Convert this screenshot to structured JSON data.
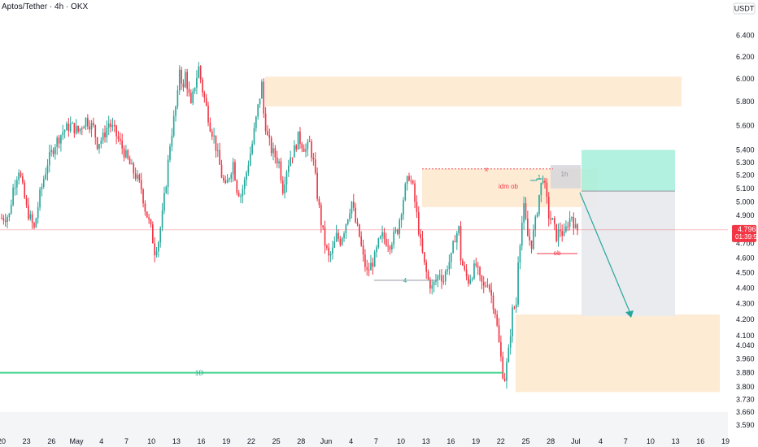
{
  "header": {
    "title": "Aptos/Tether · 4h · OKX"
  },
  "price_axis": {
    "currency": "USDT"
  },
  "current_price": {
    "value": "4.796",
    "countdown": "01:39:59"
  },
  "colors": {
    "up": "#26a69a",
    "down": "#f23645",
    "zone": "#fde9cf",
    "target": "#aaf0dc",
    "stop_area": "#e9eaee",
    "supply": "#d6d6dc",
    "line_green": "#42d48c",
    "line_red": "#f23645",
    "arrow": "#26a69a",
    "label_bg": "#f23645"
  },
  "chart_data": {
    "type": "candlestick",
    "title": "Aptos/Tether · 4h · OKX",
    "ylabel": "USDT",
    "y_scale": "log",
    "ylim": [
      3.56,
      6.6
    ],
    "y_ticks": [
      "6.400",
      "6.200",
      "6.000",
      "5.800",
      "5.600",
      "5.400",
      "5.300",
      "5.200",
      "5.100",
      "5.000",
      "4.900",
      "4.800",
      "4.700",
      "4.600",
      "4.500",
      "4.400",
      "4.300",
      "4.200",
      "4.100",
      "4.040",
      "3.960",
      "3.880",
      "3.800",
      "3.730",
      "3.660",
      "3.590"
    ],
    "x_ticks": [
      "20",
      "23",
      "26",
      "May",
      "4",
      "7",
      "10",
      "13",
      "16",
      "19",
      "22",
      "25",
      "28",
      "Jun",
      "4",
      "7",
      "10",
      "13",
      "16",
      "19",
      "22",
      "25",
      "28",
      "Jul",
      "4",
      "7",
      "10",
      "13",
      "16",
      "19"
    ],
    "x_range": [
      "Apr 20",
      "Jul 19"
    ],
    "path_points": [
      [
        0,
        4.88
      ],
      [
        4,
        4.9
      ],
      [
        6,
        5.1
      ],
      [
        9,
        5.25
      ],
      [
        13,
        4.95
      ],
      [
        17,
        4.8
      ],
      [
        20,
        5.05
      ],
      [
        24,
        5.3
      ],
      [
        28,
        5.45
      ],
      [
        32,
        5.55
      ],
      [
        36,
        5.6
      ],
      [
        40,
        5.55
      ],
      [
        44,
        5.65
      ],
      [
        48,
        5.58
      ],
      [
        50,
        5.45
      ],
      [
        53,
        5.5
      ],
      [
        56,
        5.62
      ],
      [
        59,
        5.55
      ],
      [
        62,
        5.45
      ],
      [
        65,
        5.35
      ],
      [
        68,
        5.25
      ],
      [
        70,
        5.2
      ],
      [
        73,
        5.1
      ],
      [
        75,
        4.95
      ],
      [
        78,
        4.8
      ],
      [
        80,
        4.65
      ],
      [
        82,
        4.72
      ],
      [
        84,
        4.9
      ],
      [
        86,
        5.15
      ],
      [
        88,
        5.45
      ],
      [
        90,
        5.65
      ],
      [
        92,
        5.85
      ],
      [
        93,
        6.1
      ],
      [
        95,
        5.9
      ],
      [
        96,
        6.05
      ],
      [
        98,
        5.85
      ],
      [
        99,
        5.75
      ],
      [
        101,
        5.95
      ],
      [
        103,
        6.1
      ],
      [
        105,
        5.9
      ],
      [
        107,
        5.75
      ],
      [
        109,
        5.6
      ],
      [
        111,
        5.5
      ],
      [
        113,
        5.35
      ],
      [
        115,
        5.2
      ],
      [
        117,
        5.1
      ],
      [
        119,
        5.2
      ],
      [
        121,
        5.3
      ],
      [
        123,
        5.1
      ],
      [
        125,
        5.05
      ],
      [
        127,
        5.15
      ],
      [
        129,
        5.3
      ],
      [
        131,
        5.45
      ],
      [
        133,
        5.65
      ],
      [
        135,
        5.85
      ],
      [
        136,
        5.95
      ],
      [
        137,
        5.7
      ],
      [
        139,
        5.5
      ],
      [
        141,
        5.4
      ],
      [
        143,
        5.35
      ],
      [
        145,
        5.3
      ],
      [
        147,
        5.1
      ],
      [
        149,
        5.25
      ],
      [
        151,
        5.35
      ],
      [
        153,
        5.4
      ],
      [
        155,
        5.5
      ],
      [
        157,
        5.45
      ],
      [
        159,
        5.4
      ],
      [
        161,
        5.45
      ],
      [
        163,
        5.3
      ],
      [
        165,
        5.05
      ],
      [
        167,
        4.85
      ],
      [
        169,
        4.7
      ],
      [
        171,
        4.6
      ],
      [
        173,
        4.65
      ],
      [
        175,
        4.75
      ],
      [
        177,
        4.72
      ],
      [
        179,
        4.8
      ],
      [
        181,
        4.9
      ],
      [
        183,
        5.0
      ],
      [
        185,
        4.85
      ],
      [
        187,
        4.75
      ],
      [
        189,
        4.6
      ],
      [
        191,
        4.5
      ],
      [
        193,
        4.55
      ],
      [
        195,
        4.6
      ],
      [
        197,
        4.7
      ],
      [
        199,
        4.75
      ],
      [
        201,
        4.72
      ],
      [
        203,
        4.7
      ],
      [
        205,
        4.75
      ],
      [
        207,
        4.8
      ],
      [
        209,
        4.95
      ],
      [
        211,
        5.1
      ],
      [
        213,
        5.2
      ],
      [
        215,
        5.1
      ],
      [
        217,
        4.9
      ],
      [
        219,
        4.7
      ],
      [
        221,
        4.55
      ],
      [
        223,
        4.45
      ],
      [
        225,
        4.4
      ],
      [
        227,
        4.45
      ],
      [
        229,
        4.5
      ],
      [
        231,
        4.45
      ],
      [
        233,
        4.55
      ],
      [
        235,
        4.6
      ],
      [
        237,
        4.75
      ],
      [
        239,
        4.8
      ],
      [
        240,
        4.6
      ],
      [
        242,
        4.5
      ],
      [
        244,
        4.45
      ],
      [
        246,
        4.5
      ],
      [
        248,
        4.55
      ],
      [
        250,
        4.45
      ],
      [
        252,
        4.4
      ],
      [
        254,
        4.45
      ],
      [
        256,
        4.35
      ],
      [
        258,
        4.25
      ],
      [
        260,
        4.05
      ],
      [
        262,
        3.88
      ],
      [
        263,
        3.85
      ],
      [
        265,
        4.0
      ],
      [
        267,
        4.25
      ],
      [
        269,
        4.3
      ],
      [
        270,
        4.6
      ],
      [
        272,
        4.85
      ],
      [
        273,
        4.95
      ],
      [
        275,
        4.75
      ],
      [
        277,
        4.7
      ],
      [
        279,
        4.85
      ],
      [
        281,
        5.05
      ],
      [
        283,
        5.2
      ],
      [
        284,
        5.1
      ],
      [
        286,
        4.9
      ],
      [
        288,
        4.85
      ],
      [
        290,
        4.75
      ],
      [
        292,
        4.8
      ],
      [
        294,
        4.75
      ],
      [
        296,
        4.85
      ],
      [
        298,
        4.9
      ],
      [
        300,
        4.8
      ],
      [
        301,
        4.796
      ]
    ],
    "levels": [
      {
        "name": "4",
        "price": 4.45
      },
      {
        "name": "1D",
        "price": 3.88
      }
    ],
    "zones": [
      {
        "name": "upper-supply",
        "y": [
          5.76,
          6.02
        ]
      },
      {
        "name": "idm ob",
        "y": [
          4.96,
          5.25
        ]
      },
      {
        "name": "1h",
        "y": [
          5.1,
          5.28
        ]
      },
      {
        "name": "demand",
        "y": [
          3.77,
          4.23
        ]
      }
    ],
    "annotations": [
      {
        "text": "1D",
        "kind": "level"
      },
      {
        "text": "4",
        "kind": "level"
      },
      {
        "text": "idm ob",
        "kind": "zone"
      },
      {
        "text": "1h",
        "kind": "zone"
      },
      {
        "text": "ob",
        "kind": "level"
      },
      {
        "text": "1",
        "kind": "level"
      },
      {
        "text": "x",
        "kind": "marker"
      }
    ],
    "position": {
      "entry": 5.08,
      "target": 5.4,
      "stop_area_low": 4.22
    }
  }
}
